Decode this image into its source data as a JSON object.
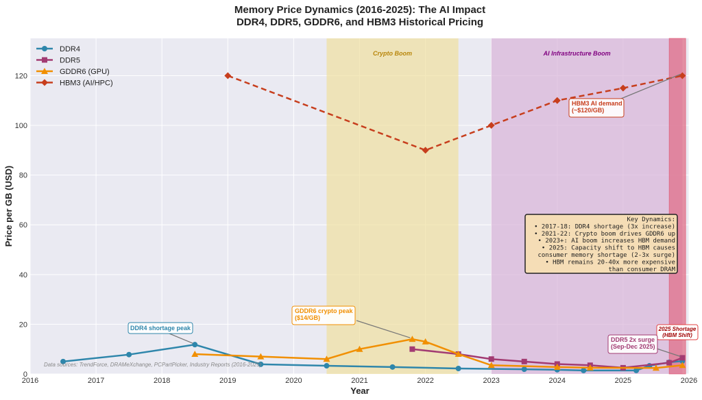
{
  "chart_data": {
    "type": "line",
    "title": "Memory Price Dynamics (2016-2025): The AI Impact",
    "subtitle": "DDR4, DDR5, GDDR6, and HBM3 Historical Pricing",
    "xlabel": "Year",
    "ylabel": "Price per GB (USD)",
    "xlim": [
      2016,
      2026
    ],
    "ylim": [
      0,
      135
    ],
    "grid": true,
    "legend_placement": "top-left",
    "xticks": [
      "2016",
      "2017",
      "2018",
      "2019",
      "2020",
      "2021",
      "2022",
      "2023",
      "2024",
      "2025",
      "2026"
    ],
    "yticks": [
      "0",
      "20",
      "40",
      "60",
      "80",
      "100",
      "120"
    ],
    "series": [
      {
        "name": "DDR4",
        "color": "#2e86ab",
        "marker": "circle",
        "dash": false,
        "x": [
          2016.5,
          2017.5,
          2018.5,
          2019.5,
          2020.5,
          2021.5,
          2022.5,
          2023.5,
          2024.0,
          2024.4,
          2025.2,
          2025.4,
          2025.7,
          2025.9
        ],
        "y": [
          5.0,
          7.8,
          11.8,
          3.9,
          3.3,
          2.8,
          2.2,
          1.9,
          1.7,
          1.4,
          1.4,
          3.3,
          4.7,
          5.2
        ]
      },
      {
        "name": "DDR5",
        "color": "#a23b72",
        "marker": "square",
        "dash": false,
        "x": [
          2021.8,
          2022.5,
          2023.0,
          2023.5,
          2024.0,
          2024.5,
          2025.0,
          2025.7,
          2025.9
        ],
        "y": [
          10,
          8,
          6,
          5,
          4,
          3.5,
          2.5,
          4.5,
          6.5
        ]
      },
      {
        "name": "GDDR6 (GPU)",
        "color": "#f18f01",
        "marker": "triangle",
        "dash": false,
        "x": [
          2018.5,
          2019.5,
          2020.5,
          2021.0,
          2021.8,
          2022.0,
          2022.5,
          2023.0,
          2024.0,
          2024.5,
          2025.5,
          2025.9
        ],
        "y": [
          8,
          7,
          6,
          10,
          14,
          13,
          8,
          3.5,
          2.8,
          2.5,
          2.4,
          3.5
        ]
      },
      {
        "name": "HBM3 (AI/HPC)",
        "color": "#c73e1d",
        "marker": "diamond",
        "dash": true,
        "x": [
          2019,
          2022,
          2023,
          2024,
          2025,
          2025.9
        ],
        "y": [
          120,
          90,
          100,
          110,
          115,
          120
        ]
      }
    ],
    "regions": [
      {
        "label": "Crypto Boom",
        "from": 2020.5,
        "to": 2022.5,
        "color": "#f0e0a0",
        "text_color": "#b8860b"
      },
      {
        "label": "AI Infrastructure Boom",
        "from": 2023.0,
        "to": 2025.9,
        "color": "#d8b4d8",
        "text_color": "#800080"
      },
      {
        "label": "2025 Shortage\n(HBM Shift)",
        "from": 2025.7,
        "to": 2025.95,
        "color": "#e0708a",
        "text_color": "#a00000"
      }
    ],
    "annotations": [
      {
        "text": "DDR4 shortage peak",
        "color": "#2e86ab",
        "x": 2018.5,
        "y": 11.8
      },
      {
        "text": "GDDR6 crypto peak\n($14/GB)",
        "color": "#f18f01",
        "x": 2021.8,
        "y": 14
      },
      {
        "text": "HBM3 AI demand\n(~$120/GB)",
        "color": "#c73e1d",
        "x": 2025.9,
        "y": 120
      },
      {
        "text": "DDR5 2x surge\n(Sep-Dec 2025)",
        "color": "#a23b72",
        "x": 2025.9,
        "y": 6.5
      }
    ],
    "key_box": {
      "lines": [
        "Key Dynamics:",
        "• 2017-18: DDR4 shortage (3x increase)",
        "• 2021-22: Crypto boom drives GDDR6 up",
        "• 2023+: AI boom increases HBM demand",
        "• 2025: Capacity shift to HBM causes",
        "consumer memory shortage (2-3x surge)",
        "• HBM remains 20-40x more expensive",
        "than consumer DRAM"
      ]
    },
    "source_note": "Data sources: TrendForce, DRAMeXchange, PCPartPicker, Industry Reports (2016-2025)"
  }
}
